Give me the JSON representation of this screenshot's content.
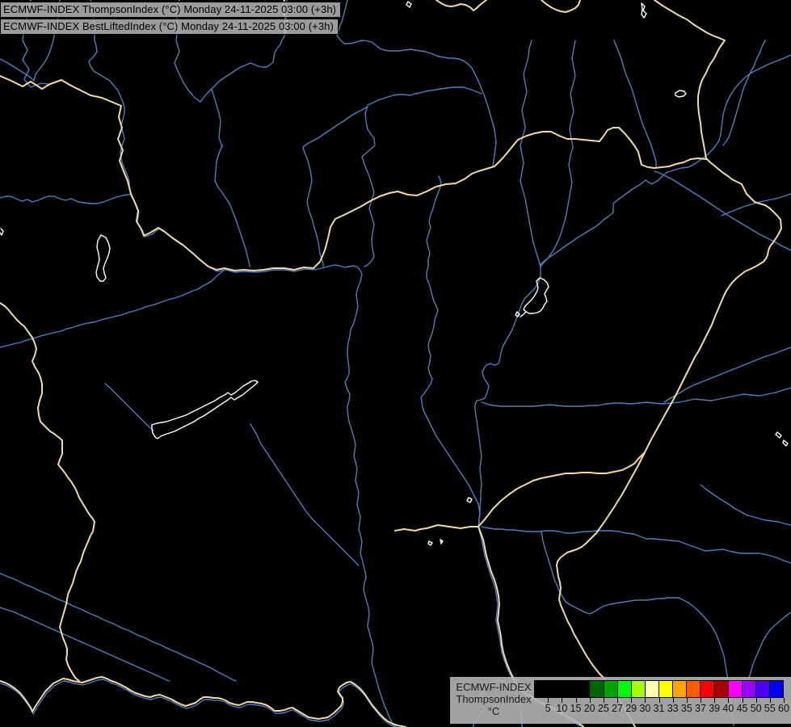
{
  "header": {
    "line1": "ECMWF-INDEX ThompsonIndex (°C) Monday 24-11-2025 03:00 (+3h)",
    "line2": "ECMWF-INDEX BestLiftedIndex (°C) Monday 24-11-2025 03:00 (+3h)"
  },
  "legend": {
    "title_line1": "ECMWF-INDEX",
    "title_line2": "ThompsonIndex",
    "unit": "°C",
    "ticks": [
      "5",
      "10",
      "15",
      "20",
      "25",
      "27",
      "29",
      "30",
      "31",
      "33",
      "35",
      "37",
      "39",
      "40",
      "45",
      "50",
      "55",
      "60"
    ],
    "colors": [
      "#000000",
      "#000000",
      "#000000",
      "#000000",
      "#006400",
      "#00a400",
      "#00ff00",
      "#a4ff00",
      "#ffffb0",
      "#ffff00",
      "#ffa500",
      "#ff5c00",
      "#ff0000",
      "#a80000",
      "#ff00ff",
      "#9a00ff",
      "#4a00ff",
      "#0000ff"
    ]
  },
  "map": {
    "background": "#000000",
    "river_color": "#4d7fbe",
    "border_color": "#f2d9a8",
    "lake_color": "#ffffff"
  }
}
